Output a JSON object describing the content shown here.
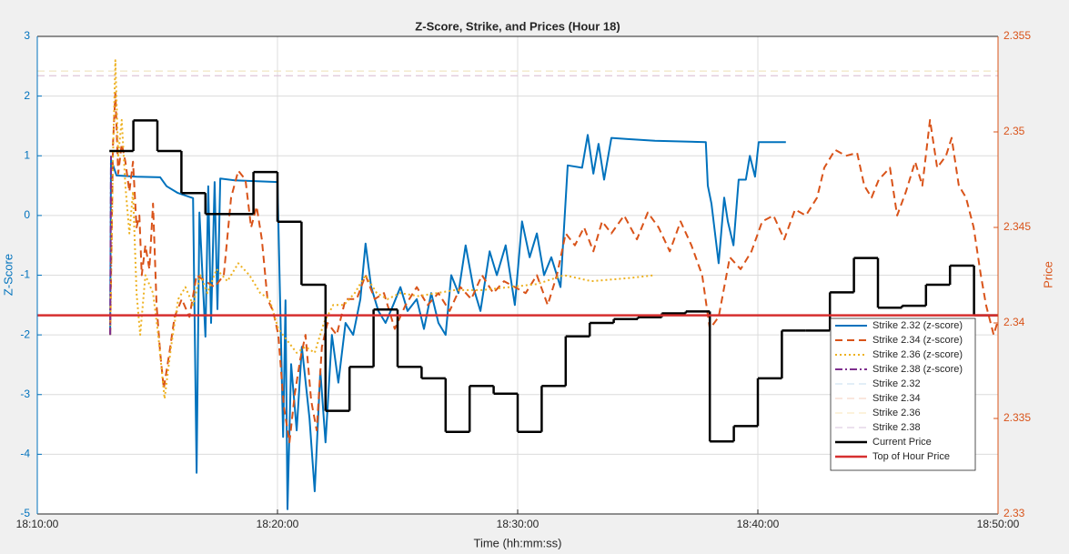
{
  "chart_data": {
    "type": "line",
    "title": "Z-Score, Strike, and Prices (Hour 18)",
    "xlabel": "Time (hh:mm:ss)",
    "ylabel": "Z-Score",
    "y2label": "Price",
    "ylabel_color": "#0072bd",
    "y2label_color": "#d95319",
    "xlim": [
      "18:10:00",
      "18:50:00"
    ],
    "xticks": [
      "18:10:00",
      "18:20:00",
      "18:30:00",
      "18:40:00",
      "18:50:00"
    ],
    "ylim": [
      -5,
      3
    ],
    "yticks": [
      -5,
      -4,
      -3,
      -2,
      -1,
      0,
      1,
      2,
      3
    ],
    "y2lim": [
      2.33,
      2.355
    ],
    "y2ticks": [
      2.33,
      2.335,
      2.34,
      2.345,
      2.35,
      2.355
    ],
    "grid": true,
    "legend": "lower right",
    "series": [
      {
        "name": "Strike 2.32 (z-score)",
        "color": "#0072bd",
        "dash": "solid",
        "width": 2,
        "x": [
          "18:13:02",
          "18:13:04",
          "18:13:18",
          "18:14:08",
          "18:15:07",
          "18:15:23",
          "18:15:50",
          "18:16:29",
          "18:16:38",
          "18:16:45",
          "18:17:00",
          "18:17:07",
          "18:17:14",
          "18:17:23",
          "18:17:30",
          "18:17:37",
          "18:18:13",
          "18:20:00",
          "18:20:07",
          "18:20:14",
          "18:20:20",
          "18:20:25",
          "18:20:34",
          "18:20:48",
          "18:21:01",
          "18:21:20",
          "18:21:33",
          "18:21:47",
          "18:22:00",
          "18:22:16",
          "18:22:32",
          "18:22:50",
          "18:23:09",
          "18:23:27",
          "18:23:40",
          "18:23:54",
          "18:24:12",
          "18:24:30",
          "18:24:49",
          "18:25:07",
          "18:25:25",
          "18:25:48",
          "18:26:06",
          "18:26:24",
          "18:26:42",
          "18:27:00",
          "18:27:14",
          "18:27:32",
          "18:27:50",
          "18:28:09",
          "18:28:27",
          "18:28:50",
          "18:29:08",
          "18:29:30",
          "18:29:53",
          "18:30:11",
          "18:30:30",
          "18:30:48",
          "18:31:06",
          "18:31:24",
          "18:31:47",
          "18:32:05",
          "18:32:41",
          "18:32:55",
          "18:33:09",
          "18:33:22",
          "18:33:36",
          "18:33:54",
          "18:34:35",
          "18:35:43",
          "18:37:50",
          "18:37:55",
          "18:38:04",
          "18:38:22",
          "18:38:36",
          "18:38:45",
          "18:38:59",
          "18:39:12",
          "18:39:30",
          "18:39:40",
          "18:39:53",
          "18:40:02",
          "18:41:10"
        ],
        "values": [
          -2.0,
          0.94,
          0.67,
          0.65,
          0.64,
          0.49,
          0.38,
          0.29,
          -4.31,
          0.05,
          -2.03,
          0.49,
          -1.8,
          0.56,
          -1.57,
          0.62,
          0.59,
          0.56,
          -1.57,
          -3.71,
          -1.42,
          -4.92,
          -2.49,
          -3.6,
          -2.2,
          -3.4,
          -4.62,
          -2.6,
          -3.8,
          -2.0,
          -2.8,
          -1.8,
          -2.0,
          -1.4,
          -0.47,
          -1.2,
          -1.6,
          -1.8,
          -1.5,
          -1.2,
          -1.6,
          -1.4,
          -1.9,
          -1.3,
          -1.8,
          -2.0,
          -1.0,
          -1.3,
          -0.5,
          -1.2,
          -1.6,
          -0.6,
          -1.0,
          -0.5,
          -1.5,
          -0.1,
          -0.7,
          -0.3,
          -1.0,
          -0.7,
          -1.2,
          0.84,
          0.8,
          1.35,
          0.7,
          1.2,
          0.6,
          1.3,
          1.28,
          1.25,
          1.23,
          0.5,
          0.2,
          -0.8,
          0.3,
          -0.1,
          -0.5,
          0.6,
          0.6,
          1.0,
          0.65,
          1.23,
          1.23
        ]
      },
      {
        "name": "Strike 2.34 (z-score)",
        "color": "#d95319",
        "dash": "dashed",
        "width": 2,
        "x": [
          "18:13:02",
          "18:13:09",
          "18:13:15",
          "18:13:22",
          "18:13:31",
          "18:13:40",
          "18:13:50",
          "18:13:59",
          "18:14:08",
          "18:14:15",
          "18:14:21",
          "18:14:30",
          "18:14:40",
          "18:14:49",
          "18:14:58",
          "18:15:07",
          "18:15:16",
          "18:15:30",
          "18:15:43",
          "18:16:01",
          "18:16:20",
          "18:16:38",
          "18:17:00",
          "18:17:23",
          "18:17:46",
          "18:18:04",
          "18:18:22",
          "18:18:40",
          "18:18:54",
          "18:19:08",
          "18:19:21",
          "18:19:35",
          "18:19:49",
          "18:20:02",
          "18:20:16",
          "18:20:30",
          "18:20:43",
          "18:20:57",
          "18:21:10",
          "18:21:24",
          "18:21:38",
          "18:21:51",
          "18:22:05",
          "18:22:28",
          "18:22:50",
          "18:23:18",
          "18:23:40",
          "18:24:03",
          "18:24:26",
          "18:24:53",
          "18:25:20",
          "18:25:48",
          "18:26:15",
          "18:26:42",
          "18:27:10",
          "18:27:37",
          "18:28:04",
          "18:28:31",
          "18:28:59",
          "18:29:26",
          "18:29:53",
          "18:30:20",
          "18:30:48",
          "18:31:15",
          "18:31:38",
          "18:32:00",
          "18:32:23",
          "18:32:46",
          "18:33:09",
          "18:33:31",
          "18:33:54",
          "18:34:26",
          "18:34:58",
          "18:35:25",
          "18:35:52",
          "18:36:20",
          "18:36:47",
          "18:37:14",
          "18:37:41",
          "18:38:00",
          "18:38:22",
          "18:38:50",
          "18:39:17",
          "18:39:44",
          "18:40:11",
          "18:40:39",
          "18:41:06",
          "18:41:33",
          "18:42:00",
          "18:42:28",
          "18:42:46",
          "18:43:13",
          "18:43:40",
          "18:44:08",
          "18:44:26",
          "18:44:44",
          "18:45:02",
          "18:45:30",
          "18:45:48",
          "18:46:10",
          "18:46:33",
          "18:46:51",
          "18:47:10",
          "18:47:28",
          "18:47:50",
          "18:48:04",
          "18:48:22",
          "18:48:40",
          "18:48:59",
          "18:49:17",
          "18:49:30",
          "18:49:49",
          "18:49:58"
        ],
        "values": [
          -2.0,
          1.2,
          2.05,
          0.7,
          1.2,
          0.9,
          0.4,
          0.9,
          -0.2,
          0.0,
          -1.0,
          -0.5,
          -0.9,
          0.2,
          -1.5,
          -2.3,
          -2.9,
          -2.3,
          -1.7,
          -1.4,
          -1.7,
          -1.0,
          -1.1,
          -1.2,
          -1.0,
          0.3,
          0.75,
          0.6,
          -0.2,
          0.15,
          -0.4,
          -1.4,
          -1.6,
          -2.0,
          -3.2,
          -3.8,
          -3.0,
          -2.4,
          -2.0,
          -3.1,
          -3.6,
          -2.2,
          -1.8,
          -2.0,
          -1.4,
          -1.4,
          -1.0,
          -1.4,
          -1.3,
          -1.9,
          -1.5,
          -1.2,
          -1.5,
          -1.3,
          -1.6,
          -1.2,
          -1.4,
          -1.0,
          -1.3,
          -1.1,
          -1.2,
          -1.3,
          -1.0,
          -1.5,
          -1.0,
          -0.3,
          -0.5,
          -0.2,
          -0.6,
          -0.1,
          -0.3,
          0.0,
          -0.4,
          0.05,
          -0.2,
          -0.6,
          -0.1,
          -0.5,
          -1.0,
          -1.9,
          -1.7,
          -0.7,
          -0.9,
          -0.6,
          -0.1,
          0.0,
          -0.4,
          0.1,
          0.0,
          0.3,
          0.8,
          1.1,
          1.0,
          1.05,
          0.5,
          0.3,
          0.6,
          0.8,
          0.0,
          0.4,
          0.9,
          0.5,
          1.6,
          0.8,
          1.0,
          1.3,
          0.5,
          0.3,
          -0.2,
          -1.0,
          -1.5,
          -2.0,
          -1.8
        ]
      },
      {
        "name": "Strike 2.36 (z-score)",
        "color": "#edb120",
        "dash": "dotted",
        "width": 2,
        "x": [
          "18:13:02",
          "18:13:09",
          "18:13:15",
          "18:13:22",
          "18:13:31",
          "18:13:40",
          "18:13:50",
          "18:13:59",
          "18:14:08",
          "18:14:17",
          "18:14:30",
          "18:14:49",
          "18:15:02",
          "18:15:18",
          "18:15:34",
          "18:15:52",
          "18:16:10",
          "18:16:29",
          "18:16:47",
          "18:17:05",
          "18:17:28",
          "18:17:55",
          "18:18:22",
          "18:18:50",
          "18:19:17",
          "18:19:40",
          "18:20:02",
          "18:20:25",
          "18:20:48",
          "18:21:10",
          "18:21:33",
          "18:21:56",
          "18:22:19",
          "18:22:46",
          "18:23:13",
          "18:23:40",
          "18:24:08",
          "18:24:35",
          "18:25:07",
          "18:25:52",
          "18:26:38",
          "18:27:23",
          "18:28:31",
          "18:29:40",
          "18:30:48",
          "18:31:56",
          "18:33:04",
          "18:34:35",
          "18:35:43"
        ],
        "values": [
          -2.0,
          1.0,
          2.6,
          1.0,
          1.6,
          0.5,
          -0.3,
          0.4,
          -1.3,
          -2.0,
          -1.0,
          -1.3,
          -2.0,
          -3.07,
          -2.2,
          -1.4,
          -1.2,
          -1.5,
          -1.0,
          -1.3,
          -0.9,
          -1.1,
          -0.8,
          -1.0,
          -1.3,
          -1.4,
          -1.9,
          -2.1,
          -2.3,
          -2.2,
          -2.3,
          -1.8,
          -1.5,
          -1.5,
          -1.3,
          -1.0,
          -1.3,
          -1.4,
          -1.3,
          -1.35,
          -1.3,
          -1.25,
          -1.25,
          -1.2,
          -1.15,
          -1.0,
          -1.1,
          -1.05,
          -1.0
        ]
      },
      {
        "name": "Strike 2.38 (z-score)",
        "color": "#7e2f8e",
        "dash": "dashdot",
        "width": 2,
        "x": [
          "18:13:02",
          "18:13:04"
        ],
        "values": [
          -2.0,
          1.0
        ]
      },
      {
        "name": "Strike 2.32",
        "color": "#c5dcef",
        "dash": "dashed",
        "width": 1,
        "x": [
          "18:10:00",
          "18:50:00"
        ],
        "values": [
          2.42,
          2.42
        ]
      },
      {
        "name": "Strike 2.34",
        "color": "#f4cdbb",
        "dash": "dashed",
        "width": 1,
        "x": [
          "18:10:00",
          "18:50:00"
        ],
        "values": [
          2.34,
          2.34
        ]
      },
      {
        "name": "Strike 2.36",
        "color": "#f8e5b8",
        "dash": "dashed",
        "width": 1,
        "x": [
          "18:10:00",
          "18:50:00"
        ],
        "values": [
          2.42,
          2.42
        ]
      },
      {
        "name": "Strike 2.38",
        "color": "#d9c3de",
        "dash": "dashed",
        "width": 1,
        "x": [
          "18:10:00",
          "18:50:00"
        ],
        "values": [
          2.34,
          2.34
        ]
      },
      {
        "name": "Current Price",
        "color": "#000000",
        "dash": "solid",
        "width": 2.5,
        "axis": "y2",
        "step": true,
        "x": [
          "18:13:00",
          "18:14:00",
          "18:15:00",
          "18:16:00",
          "18:17:00",
          "18:18:00",
          "18:19:00",
          "18:20:00",
          "18:21:00",
          "18:22:00",
          "18:23:00",
          "18:24:00",
          "18:25:00",
          "18:26:00",
          "18:27:00",
          "18:28:00",
          "18:29:00",
          "18:30:00",
          "18:31:00",
          "18:32:00",
          "18:33:00",
          "18:34:00",
          "18:35:00",
          "18:36:00",
          "18:37:00",
          "18:38:00",
          "18:39:00",
          "18:40:00",
          "18:41:00",
          "18:42:00",
          "18:43:00",
          "18:44:00",
          "18:45:00",
          "18:46:00",
          "18:47:00",
          "18:48:00",
          "18:49:00"
        ],
        "values": [
          2.349,
          2.3506,
          2.349,
          2.3468,
          2.3457,
          2.3457,
          2.3479,
          2.3453,
          2.342,
          2.3354,
          2.3377,
          2.3407,
          2.3377,
          2.3371,
          2.3343,
          2.3367,
          2.3363,
          2.3343,
          2.3367,
          2.3393,
          2.34,
          2.3402,
          2.3403,
          2.3405,
          2.3406,
          2.3338,
          2.3346,
          2.3371,
          2.3396,
          2.3396,
          2.3416,
          2.3434,
          2.3408,
          2.3409,
          2.342,
          2.343,
          2.3404
        ]
      },
      {
        "name": "Top of Hour Price",
        "color": "#d62f2f",
        "dash": "solid",
        "width": 2.5,
        "axis": "y2",
        "x": [
          "18:10:00",
          "18:50:00"
        ],
        "values": [
          2.3404,
          2.3404
        ]
      }
    ]
  }
}
